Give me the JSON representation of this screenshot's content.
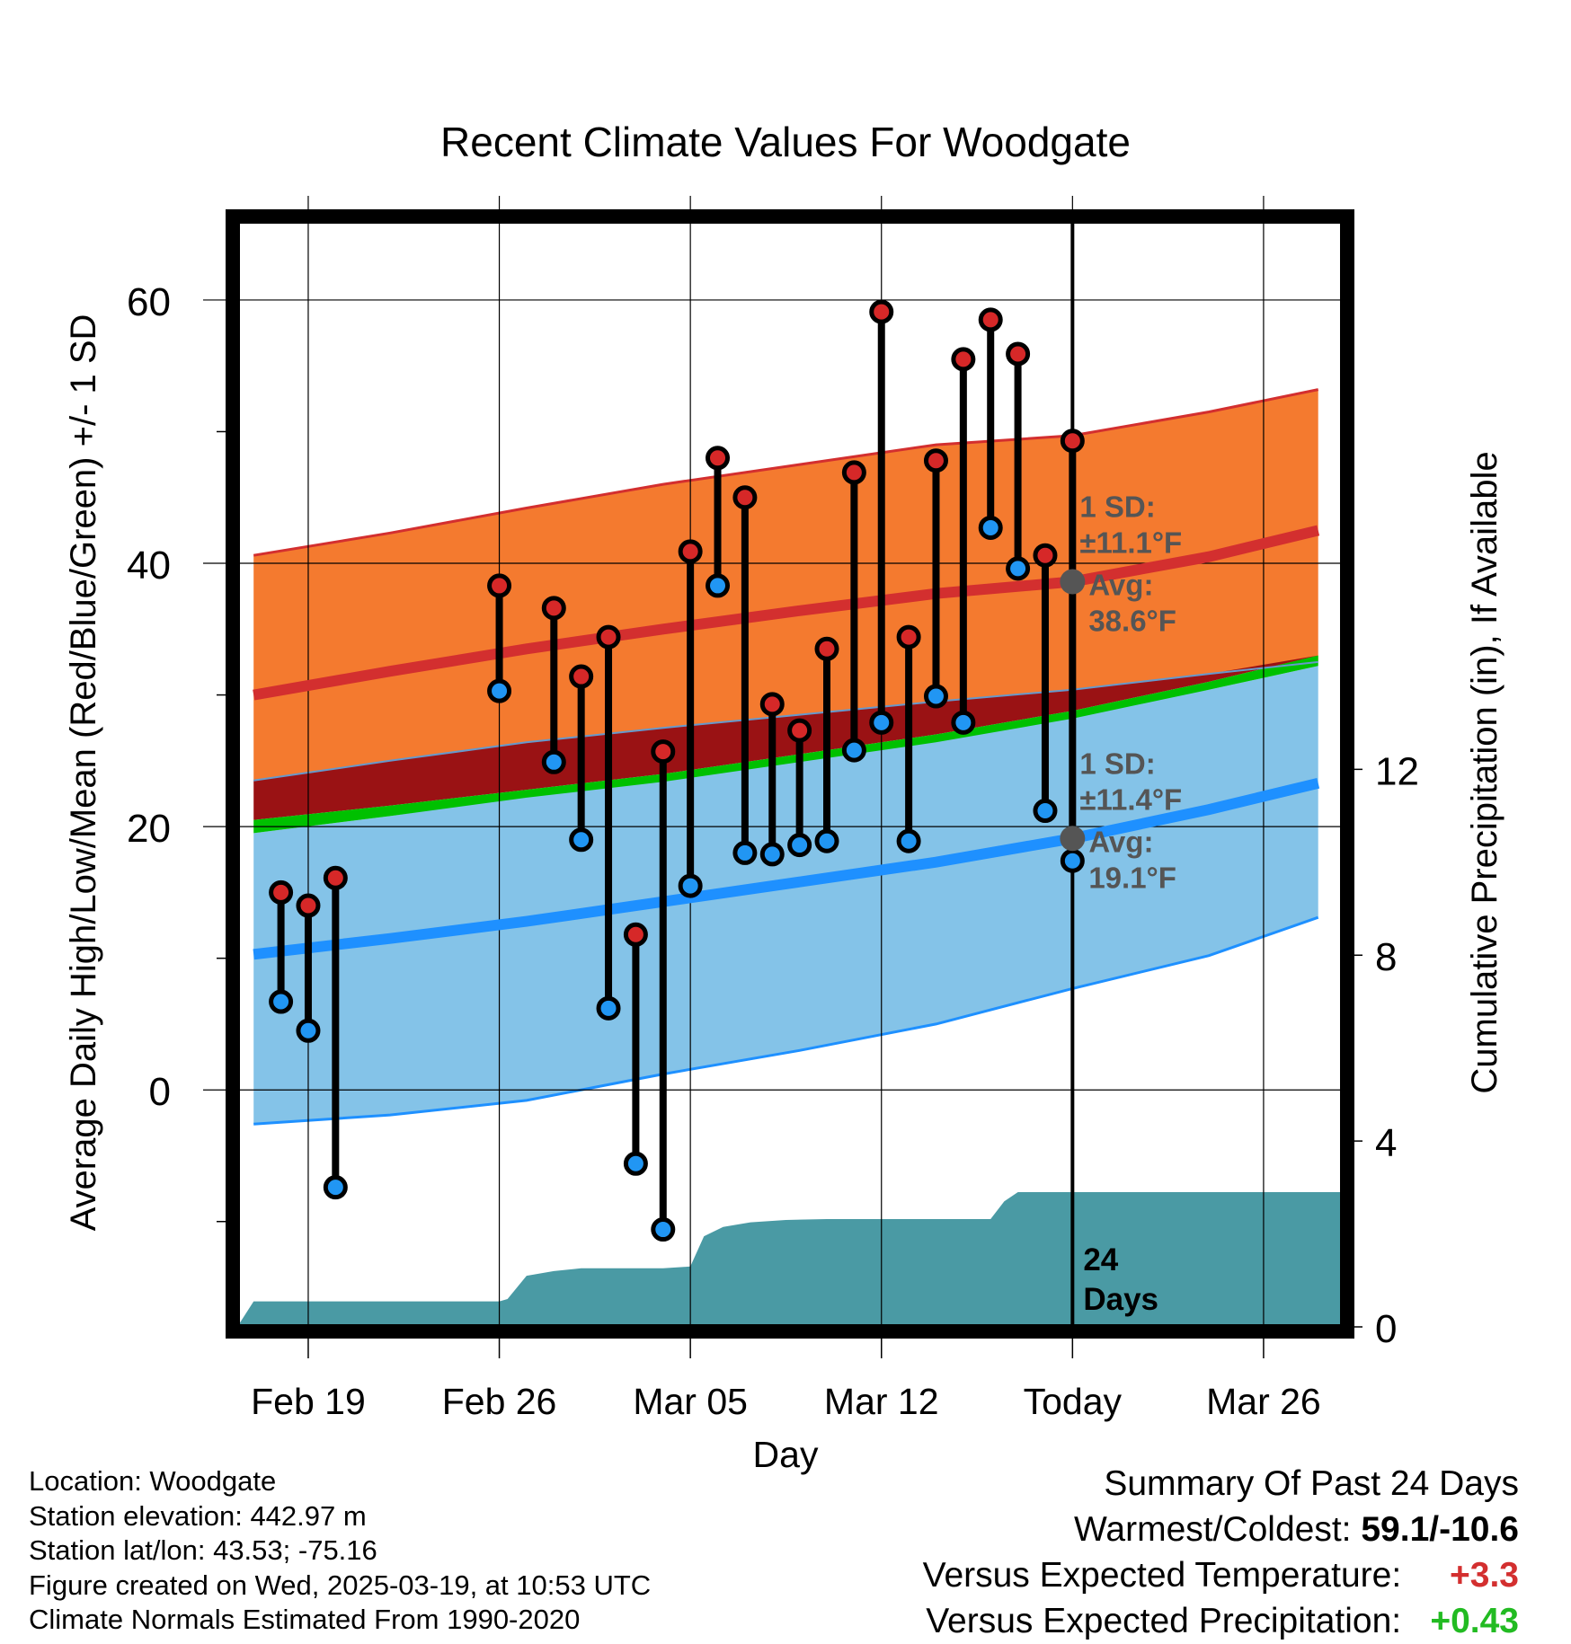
{
  "chart_data": {
    "type": "line",
    "title": "Recent Climate Values For Woodgate",
    "xlabel": "Day",
    "ylabel_left": "Average Daily High/Low/Mean (Red/Blue/Green) +/- 1 SD",
    "ylabel_right": "Cumulative Precipitation (in), If Available",
    "x_ticks": [
      {
        "day": 1,
        "label": "Feb 19"
      },
      {
        "day": 8,
        "label": "Feb 26"
      },
      {
        "day": 15,
        "label": "Mar 05"
      },
      {
        "day": 22,
        "label": "Mar 12"
      },
      {
        "day": 29,
        "label": "Today"
      },
      {
        "day": 36,
        "label": "Mar 26"
      }
    ],
    "x_range": [
      -1.6,
      38.9
    ],
    "ylim_left": [
      -18,
      66
    ],
    "ylim_right": [
      0,
      23.8
    ],
    "y_ticks_left": [
      0,
      20,
      40,
      60
    ],
    "y_ticks_right": [
      0,
      4,
      8,
      12
    ],
    "today_day": 29,
    "normals": {
      "x": [
        -1,
        4,
        9,
        14,
        19,
        24,
        29,
        34,
        38
      ],
      "high_mean": [
        30.0,
        31.8,
        33.5,
        35.0,
        36.4,
        37.7,
        38.6,
        40.5,
        42.5
      ],
      "high_upper": [
        40.6,
        42.3,
        44.2,
        46.0,
        47.5,
        49.0,
        49.7,
        51.5,
        53.2
      ],
      "high_lower": [
        23.5,
        25.0,
        26.4,
        27.5,
        28.5,
        29.5,
        30.4,
        31.6,
        32.5
      ],
      "mean_line": [
        20.5,
        21.6,
        22.8,
        24.0,
        25.5,
        27.0,
        28.8,
        31.0,
        33.0
      ],
      "low_mean": [
        10.3,
        11.5,
        12.8,
        14.3,
        15.8,
        17.3,
        19.1,
        21.3,
        23.3
      ],
      "low_upper": [
        19.5,
        20.8,
        22.3,
        23.6,
        25.2,
        26.8,
        28.6,
        30.4,
        32.2
      ],
      "low_lower": [
        -2.6,
        -1.9,
        -0.8,
        1.2,
        3.0,
        5.0,
        7.7,
        10.2,
        13.1
      ]
    },
    "observations": [
      {
        "day": 0,
        "high": 15.0,
        "low": 6.7
      },
      {
        "day": 1,
        "high": 14.0,
        "low": 4.5
      },
      {
        "day": 2,
        "high": 16.1,
        "low": -7.4
      },
      {
        "day": 8,
        "high": 38.3,
        "low": 30.3
      },
      {
        "day": 10,
        "high": 36.6,
        "low": 24.9
      },
      {
        "day": 11,
        "high": 31.4,
        "low": 19.0
      },
      {
        "day": 12,
        "high": 34.4,
        "low": 6.2
      },
      {
        "day": 13,
        "high": 11.8,
        "low": -5.6
      },
      {
        "day": 14,
        "high": 25.7,
        "low": -10.6
      },
      {
        "day": 15,
        "high": 40.9,
        "low": 15.5
      },
      {
        "day": 16,
        "high": 48.0,
        "low": 38.3
      },
      {
        "day": 17,
        "high": 45.0,
        "low": 18.0
      },
      {
        "day": 18,
        "high": 29.3,
        "low": 17.9
      },
      {
        "day": 19,
        "high": 27.3,
        "low": 18.6
      },
      {
        "day": 20,
        "high": 33.5,
        "low": 18.9
      },
      {
        "day": 21,
        "high": 46.9,
        "low": 25.8
      },
      {
        "day": 22,
        "high": 59.1,
        "low": 27.9
      },
      {
        "day": 23,
        "high": 34.4,
        "low": 18.9
      },
      {
        "day": 24,
        "high": 47.8,
        "low": 29.9
      },
      {
        "day": 25,
        "high": 55.5,
        "low": 27.9
      },
      {
        "day": 26,
        "high": 58.5,
        "low": 42.7
      },
      {
        "day": 27,
        "high": 55.9,
        "low": 39.6
      },
      {
        "day": 28,
        "high": 40.6,
        "low": 21.2
      },
      {
        "day": 29,
        "high": 49.3,
        "low": 17.4
      }
    ],
    "precipitation": {
      "x": [
        -1.6,
        -1.0,
        8.0,
        8.3,
        9.0,
        10.0,
        11.0,
        13.0,
        14.0,
        15.0,
        15.5,
        16.2,
        17.2,
        18.5,
        20.0,
        22.0,
        25.0,
        26.0,
        26.5,
        27.0,
        29.0,
        38.9
      ],
      "y": [
        0,
        0.55,
        0.55,
        0.6,
        1.1,
        1.2,
        1.26,
        1.26,
        1.26,
        1.3,
        1.95,
        2.15,
        2.25,
        2.3,
        2.32,
        2.32,
        2.32,
        2.32,
        2.7,
        2.9,
        2.9,
        2.9
      ]
    },
    "annotations": {
      "high_sd": "1 SD:",
      "high_sd_val": "±11.1°F",
      "high_avg": "Avg:",
      "high_avg_val": "38.6°F",
      "low_sd": "1 SD:",
      "low_sd_val": "±11.4°F",
      "low_avg": "Avg:",
      "low_avg_val": "19.1°F",
      "days_num": "24",
      "days_word": "Days"
    },
    "colors": {
      "high_band": "#f47a2f",
      "high_line": "#d32f2f",
      "low_band": "#84c3e8",
      "low_line": "#1e90ff",
      "mean_band": "#00c000",
      "overlap_band": "#9a1214",
      "precip": "#4a9aa4",
      "high_dot": "#d62828",
      "low_dot": "#2196f3",
      "annotation": "#555555"
    },
    "grid": true
  },
  "footer": {
    "location": "Location: Woodgate",
    "elevation": "Station elevation: 442.97 m",
    "latlon": "Station lat/lon: 43.53; -75.16",
    "created": "Figure created on Wed, 2025-03-19, at 10:53 UTC",
    "normals": "Climate Normals Estimated From 1990-2020"
  },
  "summary": {
    "title": "Summary Of Past 24 Days",
    "warmest_label": "Warmest/Coldest:",
    "warmest_value": "59.1/-10.6",
    "temp_label": "Versus Expected Temperature:",
    "temp_value": "+3.3",
    "temp_color": "#d32f2f",
    "precip_label": "Versus Expected Precipitation:",
    "precip_value": "+0.43",
    "precip_color": "#22bb22"
  }
}
